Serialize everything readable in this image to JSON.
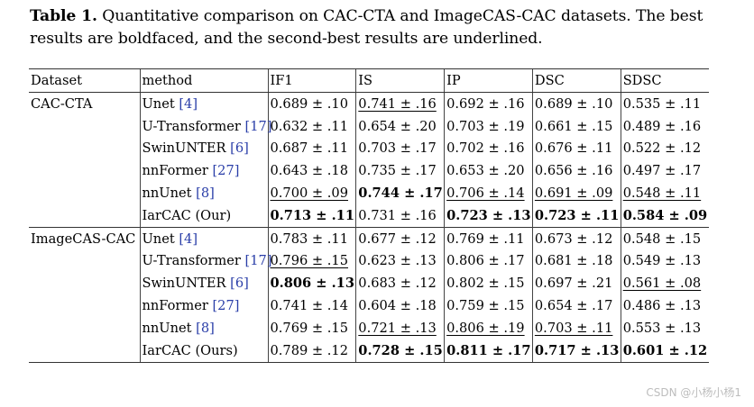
{
  "caption": {
    "label": "Table 1.",
    "text": " Quantitative comparison on CAC-CTA and ImageCAS-CAC datasets. The best results are boldfaced, and the second-best results are underlined."
  },
  "table": {
    "headers": [
      "Dataset",
      "method",
      "IF1",
      "IS",
      "IP",
      "DSC",
      "SDSC"
    ],
    "groups": [
      {
        "dataset": "CAC-CTA",
        "rows": [
          {
            "method": "Unet ",
            "ref": "[4]",
            "cells": [
              {
                "v": "0.689 ± .10",
                "s": ""
              },
              {
                "v": "0.741 ± .16",
                "s": "u"
              },
              {
                "v": "0.692 ± .16",
                "s": ""
              },
              {
                "v": "0.689 ± .10",
                "s": ""
              },
              {
                "v": "0.535 ± .11",
                "s": ""
              }
            ]
          },
          {
            "method": "U-Transformer ",
            "ref": "[17]",
            "cells": [
              {
                "v": "0.632 ± .11",
                "s": ""
              },
              {
                "v": "0.654 ± .20",
                "s": ""
              },
              {
                "v": "0.703 ± .19",
                "s": ""
              },
              {
                "v": "0.661 ± .15",
                "s": ""
              },
              {
                "v": "0.489 ± .16",
                "s": ""
              }
            ]
          },
          {
            "method": "SwinUNTER ",
            "ref": "[6]",
            "cells": [
              {
                "v": "0.687 ± .11",
                "s": ""
              },
              {
                "v": "0.703 ± .17",
                "s": ""
              },
              {
                "v": "0.702 ± .16",
                "s": ""
              },
              {
                "v": "0.676 ± .11",
                "s": ""
              },
              {
                "v": "0.522 ± .12",
                "s": ""
              }
            ]
          },
          {
            "method": "nnFormer ",
            "ref": "[27]",
            "cells": [
              {
                "v": "0.643 ± .18",
                "s": ""
              },
              {
                "v": "0.735 ± .17",
                "s": ""
              },
              {
                "v": "0.653 ± .20",
                "s": ""
              },
              {
                "v": "0.656 ± .16",
                "s": ""
              },
              {
                "v": "0.497 ± .17",
                "s": ""
              }
            ]
          },
          {
            "method": "nnUnet ",
            "ref": "[8]",
            "cells": [
              {
                "v": "0.700 ± .09",
                "s": "u"
              },
              {
                "v": "0.744 ± .17",
                "s": "b"
              },
              {
                "v": "0.706 ± .14",
                "s": "u"
              },
              {
                "v": "0.691 ± .09",
                "s": "u"
              },
              {
                "v": "0.548 ± .11",
                "s": "u"
              }
            ]
          },
          {
            "method": "IarCAC (Our)",
            "ref": "",
            "cells": [
              {
                "v": "0.713 ± .11",
                "s": "b"
              },
              {
                "v": "0.731 ± .16",
                "s": ""
              },
              {
                "v": "0.723 ± .13",
                "s": "b"
              },
              {
                "v": "0.723 ± .11",
                "s": "b"
              },
              {
                "v": "0.584 ± .09",
                "s": "b"
              }
            ]
          }
        ]
      },
      {
        "dataset": "ImageCAS-CAC",
        "rows": [
          {
            "method": "Unet ",
            "ref": "[4]",
            "cells": [
              {
                "v": "0.783 ± .11",
                "s": ""
              },
              {
                "v": "0.677 ± .12",
                "s": ""
              },
              {
                "v": "0.769 ± .11",
                "s": ""
              },
              {
                "v": "0.673 ± .12",
                "s": ""
              },
              {
                "v": "0.548 ± .15",
                "s": ""
              }
            ]
          },
          {
            "method": "U-Transformer ",
            "ref": "[17]",
            "cells": [
              {
                "v": "0.796 ± .15",
                "s": "u"
              },
              {
                "v": "0.623 ± .13",
                "s": ""
              },
              {
                "v": "0.806 ± .17",
                "s": ""
              },
              {
                "v": "0.681 ± .18",
                "s": ""
              },
              {
                "v": "0.549 ± .13",
                "s": ""
              }
            ]
          },
          {
            "method": "SwinUNTER ",
            "ref": "[6]",
            "cells": [
              {
                "v": "0.806 ± .13",
                "s": "b"
              },
              {
                "v": "0.683 ± .12",
                "s": ""
              },
              {
                "v": "0.802 ± .15",
                "s": ""
              },
              {
                "v": "0.697 ± .21",
                "s": ""
              },
              {
                "v": "0.561 ± .08",
                "s": "u"
              }
            ]
          },
          {
            "method": "nnFormer ",
            "ref": "[27]",
            "cells": [
              {
                "v": "0.741 ± .14",
                "s": ""
              },
              {
                "v": "0.604 ± .18",
                "s": ""
              },
              {
                "v": "0.759 ± .15",
                "s": ""
              },
              {
                "v": "0.654 ± .17",
                "s": ""
              },
              {
                "v": "0.486 ± .13",
                "s": ""
              }
            ]
          },
          {
            "method": "nnUnet ",
            "ref": "[8]",
            "cells": [
              {
                "v": "0.769 ± .15",
                "s": ""
              },
              {
                "v": "0.721 ± .13",
                "s": "u"
              },
              {
                "v": "0.806 ± .19",
                "s": "u"
              },
              {
                "v": "0.703 ± .11",
                "s": "u"
              },
              {
                "v": "0.553 ± .13",
                "s": ""
              }
            ]
          },
          {
            "method": "IarCAC (Ours)",
            "ref": "",
            "cells": [
              {
                "v": "0.789 ± .12",
                "s": ""
              },
              {
                "v": "0.728 ± .15",
                "s": "b"
              },
              {
                "v": "0.811 ± .17",
                "s": "b"
              },
              {
                "v": "0.717 ± .13",
                "s": "b"
              },
              {
                "v": "0.601 ± .12",
                "s": "b"
              }
            ]
          }
        ]
      }
    ]
  },
  "watermark": "CSDN @小杨小杨1"
}
